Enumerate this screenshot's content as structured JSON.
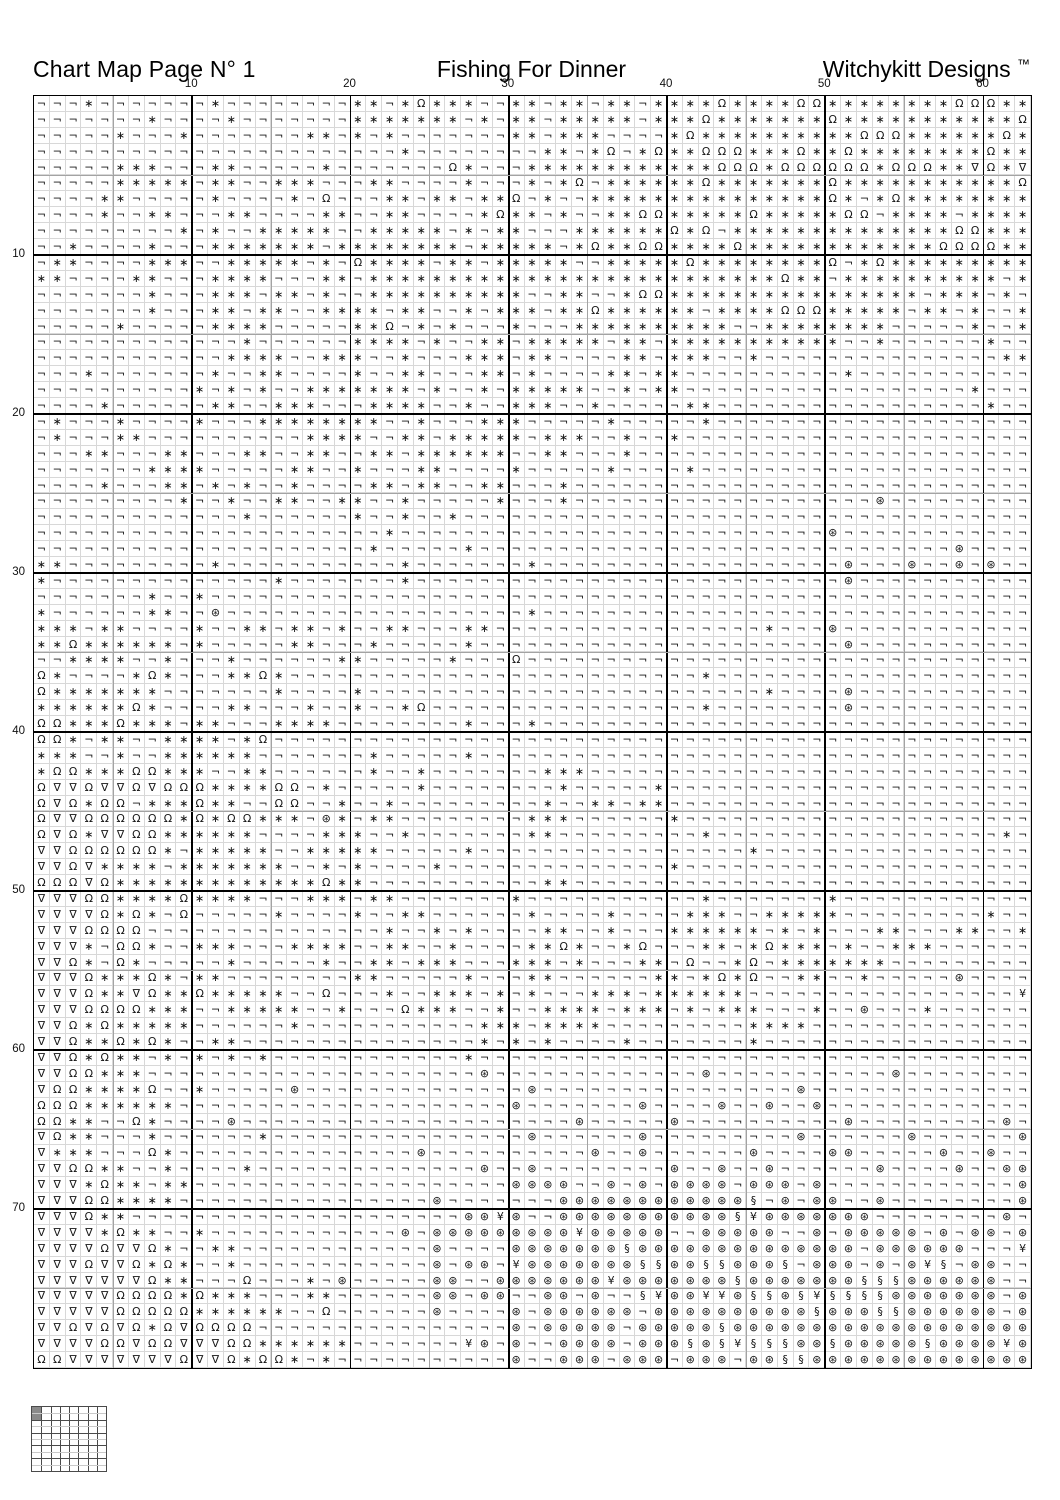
{
  "header": {
    "left": "Chart Map Page N° 1",
    "center": "Fishing For Dinner",
    "right": "Witchykitt Designs",
    "trademark": "™"
  },
  "axes": {
    "top": [
      "10",
      "20",
      "30",
      "40",
      "50",
      "60"
    ],
    "left": [
      "10",
      "20",
      "30",
      "40",
      "50",
      "60",
      "70"
    ]
  },
  "colors": {
    "grid_light": "#d8d8d8",
    "grid_medium": "#a3a3a3",
    "grid_heavy": "#000000",
    "symbol": "#151515",
    "minimap_fill": "#8a8a8a"
  },
  "chart": {
    "cols": 63,
    "rows": 80,
    "symbols": {
      "n": "¬",
      "a": "∗",
      "o": "Ω",
      "v": "∇",
      "c": "⊛",
      "s": "§",
      "y": "¥"
    },
    "symbol_names": {
      "n": "corner-stitch",
      "a": "asterisk-stitch",
      "o": "omega-stitch",
      "v": "nabla-stitch",
      "c": "circled-star-stitch",
      "s": "section-stitch",
      "y": "yen-stitch"
    },
    "rows_data": [
      "nnnannnnnnnannnnnnnnaanaoaaannaanaanaanaaaaoaaaaooaaaaaaaaoooaa",
      "nnnnnnnannnnannnnnnnaaaaaaananaanaaaaanaaaoaaaaaaaoaaaaaaaaaaao",
      "nnnnnannnannnnnnnaananannnnnnnaanaaannnnaoaaaaaaaaaaoooaaaaaaoa",
      "nnnnnnnnnnnnnnnnnnnnnnnannnnnnnnaanaonaoaaoooaaaoaaoaaaaaaaaoaa",
      "nnnnnaaannnaannnnnannnnnnnoannnaaaaaaaaaaaaoooaooooooaoooaavoav",
      "nnnnnaaaaanaannaaannnaannnnannnanaonaaaaaaoaaaaaaaoaaaaaaaaaaao",
      "nnnnaannnnnannnnanonnnaanaanaaonannaaaaaaaaaaaaaaaoanaoaaaaaaaa",
      "nnnnannaannnaannnnaannaannnnaoaanannaaooaaaaaoaaaaaoonaaaanaaaa",
      "nnnnnnnnnanannaaaaannaaaaananaannnaaaaaaoaonaaaaaaaaaaaaaaooaaa",
      "nnannnnannnaaaaaaanaaaaaaaanaaaaanaoaaooaaaaoaaaaaaaaaaaaooooaa",
      "naannnnaaannaaaaananoaaaanaanaaaaannaaaaaoaaaaaaaaonaoaaaaaaaaa",
      "aannnnaannnaaaannnaanaaaaaaaaaaaaaaaaaaaaaaaaaaoaanaaaaaaaaaana",
      "nnnnnnnannnaaanaanannaaaaaaaaaannaannaooaaaaaaaaaaaaaaaanaaanan",
      "nnnnnnnannnaanaannaaaanaannanaaanaaoaaaaaanaaaaoooaaaaanaananna",
      "nnnnnannnnnaaaannnnnaaonanannnannnaaaaaaaaaannaaaaaaaannnnnanna",
      "nnnnnnnnnnnnnannnnnnaaaanannaanaaaaanaanaaaaaaaaaaannannnnnnann",
      "nnnnnnnnnnnnaaaannaaannannnaaanaannnnaanaaannannnnnnnnnnnnnnnaa",
      "nnnannnnnnnannaannnnannaannnaanannnnaanaannnnnnnnnnannnnnnnnnnn",
      "nnnnnnnnnnananannaaaaaaanannanaaaaannanaannnnnnnnnnnnnnnnnnannn",
      "nnnnannnnnnaannaaannnaaaannannaaannannnnnaannnnnnnnnnnnnnnnnann",
      "nannnannnnannnaaaaaaaannannnaaannnnnannnnnannnnnnnnnnnnnnnnnnnn",
      "nannnaannnnnnnnnnaaaannaanaaaaanaaannannannnnnnnnnnnnnnnnnnnnnn",
      "nnnaannnaannnaannaannaanaaaaaannaannnannnnnnnnnnnnnnnnnnnnnnnnn",
      "nnnnnnnaaaannnnnaannannnaannnnannnnnannnnannnnnnnnnnnnnnnnnnnnn",
      "nnnnannnaananannannnnaanaannaannnannnnnnnnnnnnnnnnnnnnnnnnnnnnn",
      "nnnnnnnnnannannaannaannannnnnannnannnnnnnnnnnnnnnnnnncnnnnnnnnn",
      "nnnnnnnnnnnnnannnnnnannannannnnnnnnnnnnnnnnnnnnnnnnnnnnnnnnnnnn",
      "nnnnnnnnnnnnnnnnnnnnnnannnnnnnnnnnnnnnnnnnnnnnnnnncnnnnnnnnnnn",
      "nnnnnnnnnnnnnnnnnnnnnannnnnannnnnnnnnnnnnnnnnnnnnnnnnnnnnncnnn",
      "aannnnnnnnnannnnnnnnnnnannnnnnnannnnnnnnnnnnnnnnnnncnnncnncncnn",
      "annnnnnnnnnnnnnannnnnnnannnnnnnnnnnnnnnnnnnnnnnnnnncnnnnnnnnnnn",
      "nnnnnnnannannnnnnnnnnnnnnnnnnnnnnnnnnnnnnnnnnnnnnnnnnnnnnnnnnn",
      "annnnnnaanncnnnnnnnnnnnnnnnnnnnannnnnnnnnnnnnnnnnnnnnnnnnnnnnnn",
      "aaanaannnnannaanaanannaannnaannnnnnnnnnnnnnnnnannncnnnnnnnnnnnn",
      "aaoaaaaaanannnnnaannnannnnnannnnnnnnnnnnnnnnnnnnnnncnnnnnnnnnnn",
      "nnaaaannannnannnnnnaannnnnannnonnnnnnnnnnnnnnnnnnnnnnnnnnnnnnnn",
      "oannnnaoannnaaoannnnnnnnnnnnnnnnnnnnnnnnnnannnnnnnnnnnnnnnnnnnn",
      "oaaaaaaannnnnnnannnnannnnnnnnnnnnnnnnnnnnnnnnnannnncnnnnnnnnnnn",
      "aaaaaaoannnnaannnannannaonnnnnnnnnnnnnnnnnannnnnnnncnnnnnnnnnnn",
      "ooaaaoaaanaannnaaaannnnnnnnannnannnnnnnnnnnnnnnnnnnnnnnnnnnnnnn",
      "ooanaannaaaanaonnnnnnnnnnnnnnnnnnnnnnnnnnnnnnnnnnnnnnnnnnnnnnnn",
      "aaannannaaaaaannnnnnnannnnnannnnnnnnnnnnnnnnnnnnnnnnnnnnnnnnnnn",
      "aooaaaooaaannaannnnnnannannnnnnnaaannnnnnnnnnnnnnnnnnnnnnnnnnnn",
      "ovvovvovoooaaaaoonannnnnannnnnnnnannnnnannnnnnnnnnnnnnnnnnnnnnn",
      "ovoaoonaaaoaannoonnannannnnnnnnnannaanaannnnnnnnnnnnnnnnnnnnnnn",
      "ovvooooooaoaooaaancanaannnnnnnnaaannnnnnannnnnnnnnnnnnnnnnnnnnn",
      "ovoavvooaaaaaannnnaaannannnnnnnaannnnnnnnnannnnnnnnnnnnnnnnnnan",
      "vvooooooanaaaaannaaaaannnnnannnnnnnnnnnnnnnnnannnnnnnnnnnnnnnnn",
      "vvovaaaanaaaaaaannanannnnannnnnnnnnnnnnnannnnnnnnnnnnnnnnnnnnnn",
      "ooovoaaaaaaaaaaaaaoaannnnnnnnnnnaannnnnnnnnnnnnnnnnnnnnnnnnnnnn",
      "vvvooaaaaoaaaannnaaanaannnnnnnannnnnnnnnnnannnnnnnannnnnnnnnnnn",
      "vvvvoaoanonnnnnannnnannaannnnnnannnnannnnaaannaaaaannnnnnnnnann",
      "vvvoooonnnnnnnnnnnnnnnannanannnnaannannnaaaaaananannnaannnaanna",
      "vvvanooannaaannnaaaannaannannnnaaoannaonnnaanaoaaanannaaannnnnn",
      "vvoanoannnnnannnnnannaanaaannnaaanannnaanonnaonaaaaaaannnnnnnnn",
      "vvvoaaaoanaannnnnnnnaannnnnannnaannnnnnaanaoaonnaannannnnncnnnn",
      "vvvoaavoaaoaaaaannonnnannaaananannnaaanaaaaaannnnnnnnnnnnnnnnny",
      "vvvooooaaannaaaaannannnoaaannannaaaanaaananaaannnanncnnnannnnnn",
      "vvoaoaaaaannnnnnannnnnnnnnnnaaanaaaannnnnnnnnaaaannnnnnnnnnnnnn",
      "vvoaaoaoannaannnnnnnnnnnnnnnananannnnannnnnnnannnnnnnnnnnnnnnnn",
      "vvoaoaananananannnnnnnnnnnnannnnnnnnnnnnnnnnnnnnnnnnnnnnnnnnnnn",
      "vvooaaannnnnnnnnnnnnnnnnnnnncnnnnnnnnnnnnncnnnnnnnnnnncnnnnnnnn",
      "vooaaaaonnannnnncnnnnnnnnnnnnnncnnnnnnnnnnnnnnnncnnnnnnnnnnnnnn",
      "oooaaaaaannnnnnnnnnnnnnnnnnnnncnnnnnnncnnnncnncnncnnnnnnnnnnnnn",
      "ooaannoannnncnnnnnnnnnnnnnnnnnnnnncnnnnncnnnnnnnnnncnnnnnnnnncn",
      "voaannnannnnnnannnnnnnnnnnnnnnncnnnnnncnnnnnnnnncnnnnnncnnnnnnc",
      "vaaannnoannnnnnnnnnnnnnncnnnnnnnnnncnncnnnnnncnnnnccnnnnncnncnn",
      "vvooaannannnnannnnnnnnnnnnnncnncnnnnnnnncnncnncnnnnnncnnnncnncc",
      "vvvaoaanaannnnnnnnnnnnnnnnnnnnccccnncncnccccncccncnnnnnnnnnnnnc",
      "vvvooaaaannnnnnnnnnnnnnnncnnnnnnnccccccccccccsncnccnncnnnnnnnnc",
      "vvvoaannnnnnnnnnnnnnnnnnnnnccycnncccccccccccsycccccccnnnnnnnncn",
      "vvvvaoaannannnnnnnnnnnncncccccccccycccccnncccccnncncccccncnccncc",
      "vvvvovvoannaannnnnnnnnnnncnnnncccccccsccccccccccccccnccccccnnny",
      "vvvovvoaoannannnnnnnnnnnncnccnycccccccssccsscccsncccncncysnccnn",
      "vvvvvvvoaannnonnnancnnnnnccnncccccccycccccccscccccccsssccccccnn",
      "vvvvvooooaoaaannnaannnnnnccnccnnccncnnsyccyycsscsysssscccccccnc",
      "vvvvvoooooaaaaaannonnnnnncnnnncnccccccnccccccccccscccssccccccncc",
      "vvovovoaovoooonnnnnnnnnnnnnnnncncccccncccccsccccccccccccccccccc",
      "vvvvoovoovvvooaaaaaannnnnnnycncnnccccncccscsysssccscccccsccccycc",
      "oovvvvvvvovvoaooanannnnnnnnnnncnncccncccncccnccsscccccccccccccc"
    ]
  },
  "minimap": {
    "cols": 8,
    "rows": 10,
    "filled_cell": {
      "col": 0,
      "row": 0,
      "col_span": 1,
      "row_span": 2
    }
  }
}
